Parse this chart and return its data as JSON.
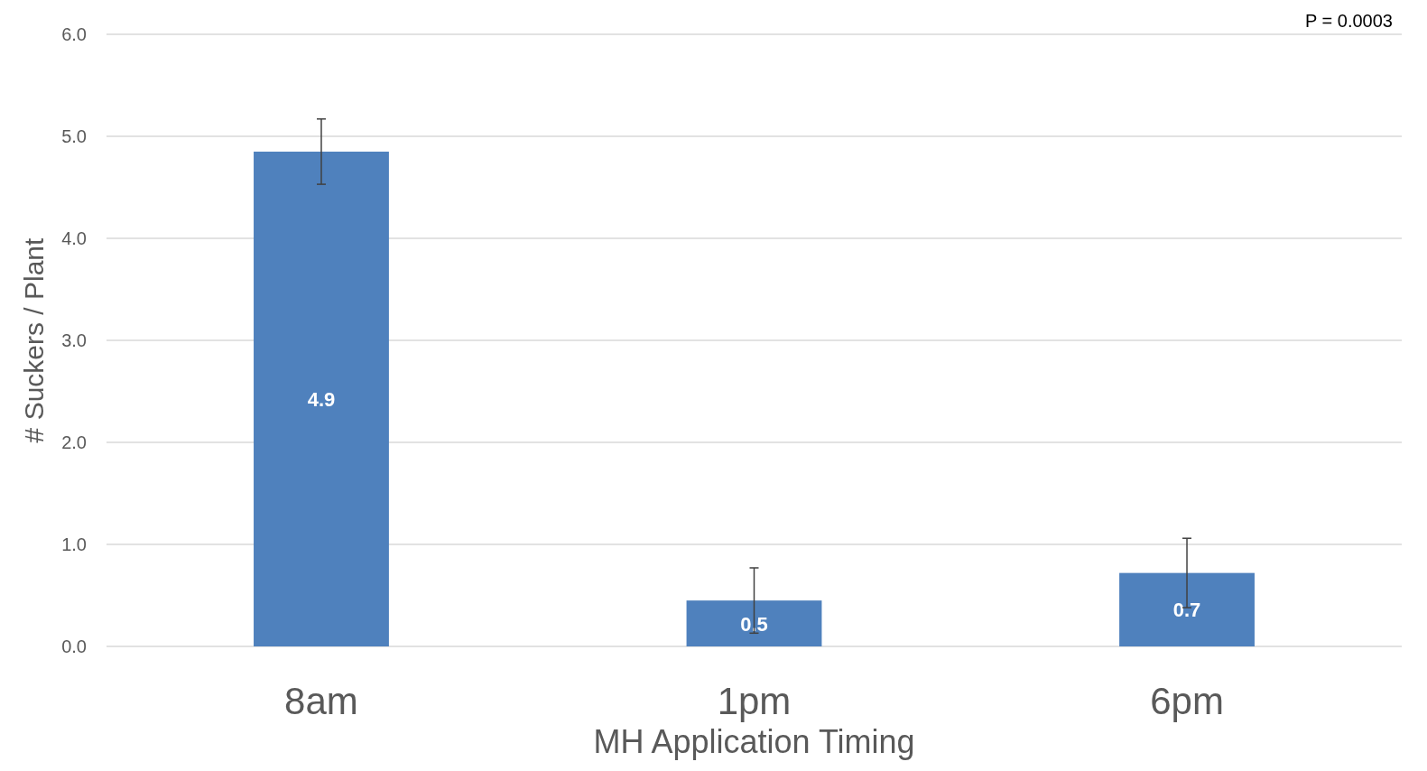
{
  "chart_data": {
    "type": "bar",
    "xlabel": "MH Application Timing",
    "ylabel": "# Suckers / Plant",
    "categories": [
      "8am",
      "1pm",
      "6pm"
    ],
    "values": [
      4.85,
      0.45,
      0.72
    ],
    "value_labels": [
      "4.9",
      "0.5",
      "0.7"
    ],
    "errors": [
      0.32,
      0.32,
      0.34
    ],
    "color": "#4f81bd",
    "ylim": [
      0,
      6
    ],
    "yticks": [
      {
        "value": 0,
        "label": "0.0"
      },
      {
        "value": 1,
        "label": "1.0"
      },
      {
        "value": 2,
        "label": "2.0"
      },
      {
        "value": 3,
        "label": "3.0"
      },
      {
        "value": 4,
        "label": "4.0"
      },
      {
        "value": 5,
        "label": "5.0"
      },
      {
        "value": 6,
        "label": "6.0"
      }
    ],
    "grid": "y",
    "annotations": [
      "P = 0.0003"
    ]
  }
}
